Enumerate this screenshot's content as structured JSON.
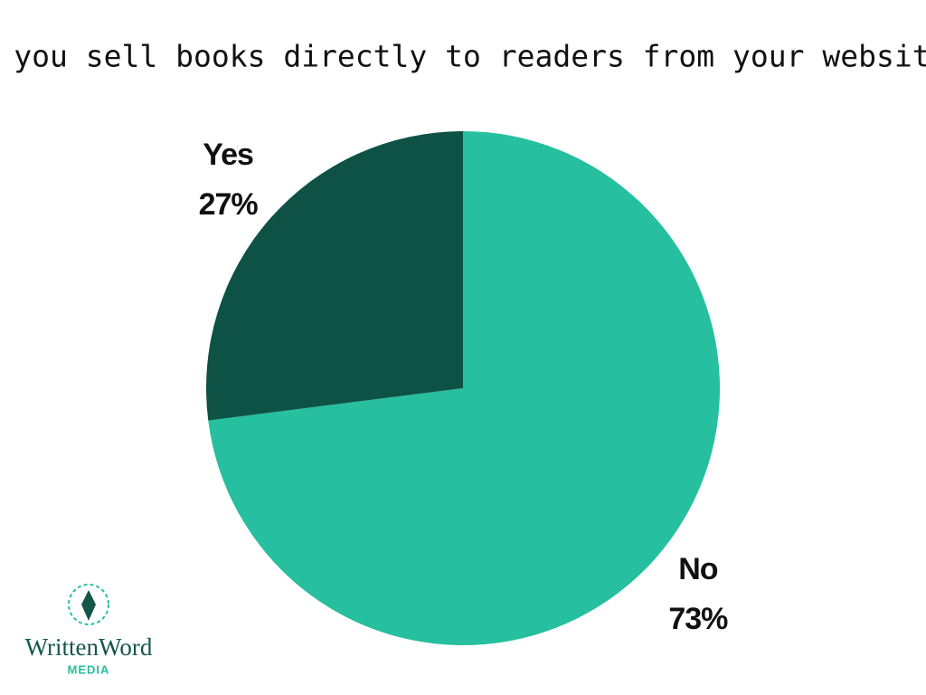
{
  "chart_data": {
    "type": "pie",
    "title": "Do you sell books directly to readers from your website?",
    "categories": [
      "No",
      "Yes"
    ],
    "values": [
      73,
      27
    ],
    "value_labels": [
      "73%",
      "27%"
    ],
    "colors": [
      "#26bf9f",
      "#0d5245"
    ]
  },
  "logo": {
    "name": "WrittenWord",
    "tagline": "MEDIA"
  }
}
